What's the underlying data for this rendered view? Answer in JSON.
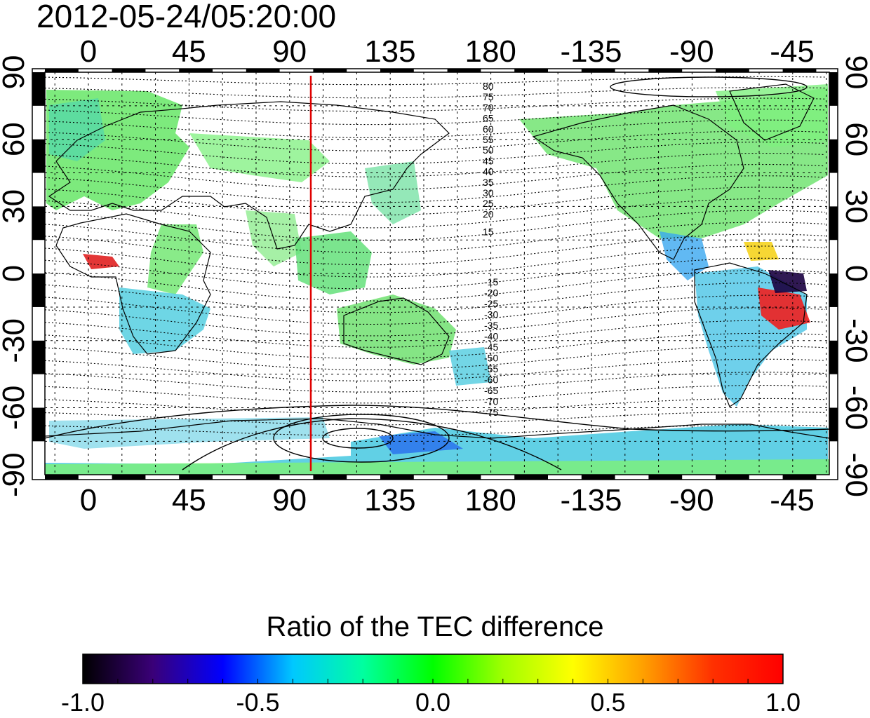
{
  "title": "2012-05-24/05:20:00",
  "colorbar": {
    "title": "Ratio of the TEC difference",
    "ticks": [
      "-1.0",
      "-0.5",
      "0.0",
      "0.5",
      "1.0"
    ],
    "colors": [
      "#000000",
      "#3a0078",
      "#0000ff",
      "#00c8ff",
      "#00ffa0",
      "#00ff00",
      "#a0ff00",
      "#ffff00",
      "#ffa000",
      "#ff3000",
      "#ff0000"
    ]
  },
  "map": {
    "x_ticks_top": [
      "0",
      "45",
      "90",
      "135",
      "180",
      "-135",
      "-90",
      "-45"
    ],
    "x_ticks_bottom": [
      "0",
      "45",
      "90",
      "135",
      "180",
      "-135",
      "-90",
      "-45"
    ],
    "y_ticks_left": [
      "90",
      "60",
      "30",
      "0",
      "-30",
      "-60",
      "-90"
    ],
    "y_ticks_right": [
      "90",
      "60",
      "30",
      "0",
      "-30",
      "-60",
      "-90"
    ],
    "contour_labels_north": [
      "80",
      "75",
      "70",
      "65",
      "60",
      "55",
      "50",
      "45",
      "40",
      "35",
      "30",
      "25",
      "20",
      "15"
    ],
    "contour_labels_south": [
      "-15",
      "-20",
      "-25",
      "-30",
      "-35",
      "-40",
      "-45",
      "-50",
      "-55",
      "-60",
      "-65",
      "-70",
      "-75"
    ],
    "meridian_line_color": "#e00000",
    "meridian_longitude": 102
  }
}
